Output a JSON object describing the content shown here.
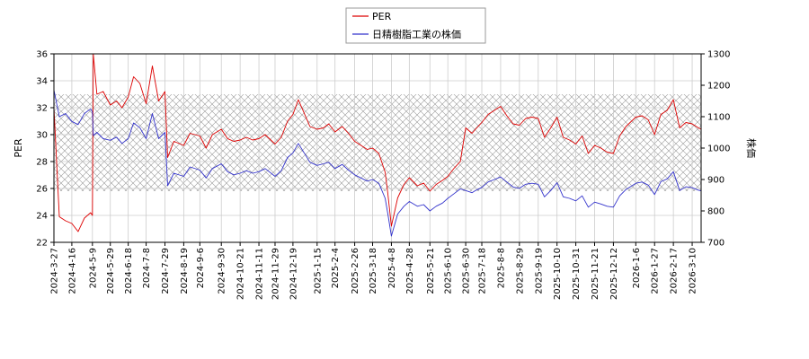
{
  "chart_data": {
    "type": "line",
    "title": "",
    "legend": {
      "placement": "top-center",
      "entries": [
        "PER",
        "日精樹脂工業の株価"
      ]
    },
    "y_left": {
      "label": "PER",
      "range": [
        22,
        36
      ],
      "ticks": [
        22,
        24,
        26,
        28,
        30,
        32,
        34,
        36
      ]
    },
    "y_right": {
      "label": "株価",
      "range": [
        700,
        1300
      ],
      "ticks": [
        700,
        800,
        900,
        1000,
        1100,
        1200,
        1300
      ]
    },
    "band": {
      "axis": "left",
      "range": [
        25.8,
        33.0
      ],
      "pattern": "crosshatch"
    },
    "grid": true,
    "x_tick_labels": [
      "2024-3-27",
      "2024-4-16",
      "2024-5-9",
      "2024-5-29",
      "2024-6-18",
      "2024-7-8",
      "2024-7-29",
      "2024-8-19",
      "2024-9-6",
      "2024-9-30",
      "2024-10-21",
      "2024-11-11",
      "2024-11-29",
      "2024-12-19",
      "2025-1-15",
      "2025-2-4",
      "2025-2-26",
      "2025-3-18",
      "2025-4-8",
      "2025-4-28",
      "2025-5-21",
      "2025-6-10",
      "2025-6-30",
      "2025-7-18",
      "2025-8-8",
      "2025-8-29",
      "2025-9-19",
      "2025-10-10",
      "2025-10-31",
      "2025-11-21",
      "2025-12-12",
      "2026-1-6",
      "2026-1-27",
      "2026-2-17",
      "2026-3-10"
    ],
    "series": [
      {
        "name": "PER",
        "axis": "left",
        "color": "#dd0000",
        "points": [
          [
            "2024-3-27",
            32.0
          ],
          [
            "2024-4-2",
            23.9
          ],
          [
            "2024-4-9",
            23.6
          ],
          [
            "2024-4-16",
            23.4
          ],
          [
            "2024-4-23",
            22.8
          ],
          [
            "2024-4-30",
            23.8
          ],
          [
            "2024-5-7",
            24.2
          ],
          [
            "2024-5-9",
            24.0
          ],
          [
            "2024-5-10",
            36.0
          ],
          [
            "2024-5-14",
            33.0
          ],
          [
            "2024-5-21",
            33.2
          ],
          [
            "2024-5-29",
            32.2
          ],
          [
            "2024-6-5",
            32.5
          ],
          [
            "2024-6-11",
            32.0
          ],
          [
            "2024-6-18",
            32.8
          ],
          [
            "2024-6-24",
            34.3
          ],
          [
            "2024-7-1",
            33.8
          ],
          [
            "2024-7-8",
            32.3
          ],
          [
            "2024-7-15",
            35.1
          ],
          [
            "2024-7-22",
            32.5
          ],
          [
            "2024-7-29",
            33.2
          ],
          [
            "2024-8-1",
            28.3
          ],
          [
            "2024-8-8",
            29.5
          ],
          [
            "2024-8-19",
            29.2
          ],
          [
            "2024-8-26",
            30.1
          ],
          [
            "2024-9-6",
            29.9
          ],
          [
            "2024-9-13",
            29.0
          ],
          [
            "2024-9-20",
            30.0
          ],
          [
            "2024-9-30",
            30.4
          ],
          [
            "2024-10-7",
            29.7
          ],
          [
            "2024-10-14",
            29.5
          ],
          [
            "2024-10-21",
            29.6
          ],
          [
            "2024-10-28",
            29.8
          ],
          [
            "2024-11-4",
            29.6
          ],
          [
            "2024-11-11",
            29.7
          ],
          [
            "2024-11-18",
            30.0
          ],
          [
            "2024-11-29",
            29.3
          ],
          [
            "2024-12-6",
            29.8
          ],
          [
            "2024-12-13",
            31.0
          ],
          [
            "2024-12-19",
            31.5
          ],
          [
            "2024-12-25",
            32.6
          ],
          [
            "2025-1-7",
            30.6
          ],
          [
            "2025-1-15",
            30.4
          ],
          [
            "2025-1-22",
            30.5
          ],
          [
            "2025-1-28",
            30.8
          ],
          [
            "2025-2-4",
            30.2
          ],
          [
            "2025-2-12",
            30.6
          ],
          [
            "2025-2-19",
            30.1
          ],
          [
            "2025-2-26",
            29.5
          ],
          [
            "2025-3-5",
            29.2
          ],
          [
            "2025-3-12",
            28.9
          ],
          [
            "2025-3-18",
            29.0
          ],
          [
            "2025-3-25",
            28.6
          ],
          [
            "2025-4-1",
            27.2
          ],
          [
            "2025-4-4",
            25.6
          ],
          [
            "2025-4-8",
            23.2
          ],
          [
            "2025-4-15",
            25.3
          ],
          [
            "2025-4-22",
            26.3
          ],
          [
            "2025-4-28",
            26.8
          ],
          [
            "2025-5-7",
            26.2
          ],
          [
            "2025-5-14",
            26.4
          ],
          [
            "2025-5-21",
            25.8
          ],
          [
            "2025-5-28",
            26.3
          ],
          [
            "2025-6-4",
            26.6
          ],
          [
            "2025-6-10",
            26.9
          ],
          [
            "2025-6-17",
            27.5
          ],
          [
            "2025-6-24",
            28.0
          ],
          [
            "2025-6-30",
            30.5
          ],
          [
            "2025-7-7",
            30.1
          ],
          [
            "2025-7-11",
            30.4
          ],
          [
            "2025-7-18",
            30.9
          ],
          [
            "2025-7-25",
            31.5
          ],
          [
            "2025-8-1",
            31.8
          ],
          [
            "2025-8-8",
            32.1
          ],
          [
            "2025-8-15",
            31.4
          ],
          [
            "2025-8-22",
            30.8
          ],
          [
            "2025-8-29",
            30.7
          ],
          [
            "2025-9-5",
            31.2
          ],
          [
            "2025-9-12",
            31.3
          ],
          [
            "2025-9-19",
            31.2
          ],
          [
            "2025-9-26",
            29.8
          ],
          [
            "2025-10-3",
            30.5
          ],
          [
            "2025-10-10",
            31.3
          ],
          [
            "2025-10-17",
            29.8
          ],
          [
            "2025-10-24",
            29.6
          ],
          [
            "2025-10-31",
            29.3
          ],
          [
            "2025-11-7",
            29.9
          ],
          [
            "2025-11-14",
            28.6
          ],
          [
            "2025-11-21",
            29.2
          ],
          [
            "2025-11-28",
            29.0
          ],
          [
            "2025-12-5",
            28.7
          ],
          [
            "2025-12-12",
            28.6
          ],
          [
            "2025-12-19",
            29.9
          ],
          [
            "2025-12-26",
            30.6
          ],
          [
            "2026-1-6",
            31.3
          ],
          [
            "2026-1-13",
            31.4
          ],
          [
            "2026-1-20",
            31.1
          ],
          [
            "2026-1-27",
            30.0
          ],
          [
            "2026-2-3",
            31.5
          ],
          [
            "2026-2-10",
            31.8
          ],
          [
            "2026-2-17",
            32.6
          ],
          [
            "2026-2-24",
            30.5
          ],
          [
            "2026-3-3",
            30.9
          ],
          [
            "2026-3-10",
            30.8
          ],
          [
            "2026-3-17",
            30.5
          ],
          [
            "2026-3-20",
            30.4
          ]
        ]
      },
      {
        "name": "日精樹脂工業の株価",
        "axis": "right",
        "color": "#3333cc",
        "points": [
          [
            "2024-3-27",
            1185
          ],
          [
            "2024-4-2",
            1100
          ],
          [
            "2024-4-9",
            1110
          ],
          [
            "2024-4-16",
            1085
          ],
          [
            "2024-4-23",
            1075
          ],
          [
            "2024-4-30",
            1110
          ],
          [
            "2024-5-7",
            1125
          ],
          [
            "2024-5-9",
            1115
          ],
          [
            "2024-5-10",
            1040
          ],
          [
            "2024-5-14",
            1050
          ],
          [
            "2024-5-21",
            1030
          ],
          [
            "2024-5-29",
            1025
          ],
          [
            "2024-6-5",
            1035
          ],
          [
            "2024-6-11",
            1015
          ],
          [
            "2024-6-18",
            1030
          ],
          [
            "2024-6-24",
            1080
          ],
          [
            "2024-7-1",
            1065
          ],
          [
            "2024-7-8",
            1030
          ],
          [
            "2024-7-15",
            1110
          ],
          [
            "2024-7-22",
            1030
          ],
          [
            "2024-7-29",
            1050
          ],
          [
            "2024-8-1",
            880
          ],
          [
            "2024-8-8",
            920
          ],
          [
            "2024-8-19",
            910
          ],
          [
            "2024-8-26",
            940
          ],
          [
            "2024-9-6",
            930
          ],
          [
            "2024-9-13",
            905
          ],
          [
            "2024-9-20",
            935
          ],
          [
            "2024-9-30",
            950
          ],
          [
            "2024-10-7",
            925
          ],
          [
            "2024-10-14",
            915
          ],
          [
            "2024-10-21",
            920
          ],
          [
            "2024-10-28",
            928
          ],
          [
            "2024-11-4",
            920
          ],
          [
            "2024-11-11",
            925
          ],
          [
            "2024-11-18",
            935
          ],
          [
            "2024-11-29",
            910
          ],
          [
            "2024-12-6",
            928
          ],
          [
            "2024-12-13",
            970
          ],
          [
            "2024-12-19",
            985
          ],
          [
            "2024-12-25",
            1015
          ],
          [
            "2025-1-7",
            955
          ],
          [
            "2025-1-15",
            945
          ],
          [
            "2025-1-22",
            950
          ],
          [
            "2025-1-28",
            955
          ],
          [
            "2025-2-4",
            935
          ],
          [
            "2025-2-12",
            948
          ],
          [
            "2025-2-19",
            930
          ],
          [
            "2025-2-26",
            915
          ],
          [
            "2025-3-5",
            905
          ],
          [
            "2025-3-12",
            895
          ],
          [
            "2025-3-18",
            900
          ],
          [
            "2025-3-25",
            888
          ],
          [
            "2025-4-1",
            840
          ],
          [
            "2025-4-4",
            790
          ],
          [
            "2025-4-8",
            720
          ],
          [
            "2025-4-15",
            790
          ],
          [
            "2025-4-22",
            815
          ],
          [
            "2025-4-28",
            830
          ],
          [
            "2025-5-7",
            815
          ],
          [
            "2025-5-14",
            820
          ],
          [
            "2025-5-21",
            800
          ],
          [
            "2025-5-28",
            815
          ],
          [
            "2025-6-4",
            825
          ],
          [
            "2025-6-10",
            840
          ],
          [
            "2025-6-17",
            855
          ],
          [
            "2025-6-24",
            870
          ],
          [
            "2025-6-30",
            865
          ],
          [
            "2025-7-7",
            858
          ],
          [
            "2025-7-11",
            865
          ],
          [
            "2025-7-18",
            875
          ],
          [
            "2025-7-25",
            892
          ],
          [
            "2025-8-1",
            900
          ],
          [
            "2025-8-8",
            908
          ],
          [
            "2025-8-15",
            892
          ],
          [
            "2025-8-22",
            876
          ],
          [
            "2025-8-29",
            872
          ],
          [
            "2025-9-5",
            885
          ],
          [
            "2025-9-12",
            888
          ],
          [
            "2025-9-19",
            885
          ],
          [
            "2025-9-26",
            845
          ],
          [
            "2025-10-3",
            865
          ],
          [
            "2025-10-10",
            890
          ],
          [
            "2025-10-17",
            845
          ],
          [
            "2025-10-24",
            840
          ],
          [
            "2025-10-31",
            832
          ],
          [
            "2025-11-7",
            848
          ],
          [
            "2025-11-14",
            812
          ],
          [
            "2025-11-21",
            828
          ],
          [
            "2025-11-28",
            822
          ],
          [
            "2025-12-5",
            815
          ],
          [
            "2025-12-12",
            812
          ],
          [
            "2025-12-19",
            848
          ],
          [
            "2025-12-26",
            868
          ],
          [
            "2026-1-6",
            888
          ],
          [
            "2026-1-13",
            892
          ],
          [
            "2026-1-20",
            882
          ],
          [
            "2026-1-27",
            852
          ],
          [
            "2026-2-3",
            893
          ],
          [
            "2026-2-10",
            902
          ],
          [
            "2026-2-17",
            925
          ],
          [
            "2026-2-24",
            865
          ],
          [
            "2026-3-3",
            877
          ],
          [
            "2026-3-10",
            874
          ],
          [
            "2026-3-17",
            866
          ],
          [
            "2026-3-20",
            864
          ]
        ]
      }
    ]
  }
}
